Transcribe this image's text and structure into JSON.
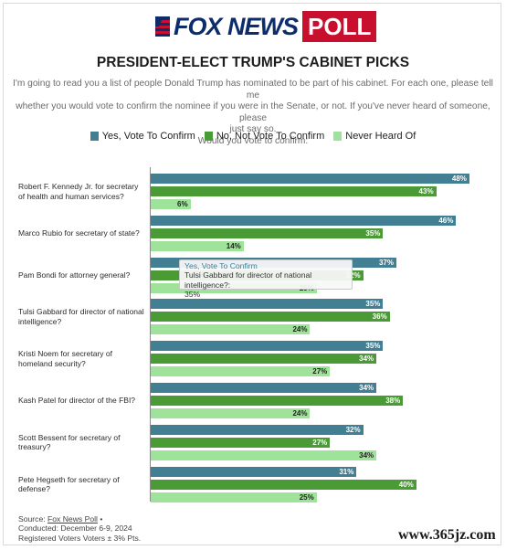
{
  "brand": {
    "logo_text": "FOX NEWS",
    "logo_poll": "POLL"
  },
  "title": "PRESIDENT-ELECT TRUMP'S CABINET PICKS",
  "question": {
    "line1": "I'm going to read you a list of people Donald Trump has nominated to be part of his cabinet. For each one, please tell me",
    "line2": "whether you would vote to confirm the nominee if you were in the Senate, or not. If you've never heard of someone, please",
    "line3": "just say so.",
    "line4": "Would you vote to confirm:"
  },
  "colors": {
    "yes": "#437f93",
    "no": "#4a9b36",
    "never": "#9fe39a"
  },
  "chart_data": {
    "type": "bar",
    "orientation": "horizontal",
    "value_format": "{v}%",
    "categories": [
      "Robert F. Kennedy Jr. for secretary of health and human services?",
      "Marco Rubio for secretary of state?",
      "Pam Bondi for attorney general?",
      "Tulsi Gabbard for director of national intelligence?",
      "Kristi Noem for secretary of homeland security?",
      "Kash Patel for director of the FBI?",
      "Scott Bessent for secretary of treasury?",
      "Pete Hegseth for secretary of defense?"
    ],
    "series": [
      {
        "name": "Yes, Vote To Confirm",
        "values": [
          48,
          46,
          37,
          35,
          35,
          34,
          32,
          31
        ]
      },
      {
        "name": "No, Not Vote To Confirm",
        "values": [
          43,
          35,
          32,
          36,
          34,
          38,
          27,
          40
        ]
      },
      {
        "name": "Never Heard Of",
        "values": [
          6,
          14,
          25,
          24,
          27,
          24,
          34,
          25
        ]
      }
    ],
    "xlim": [
      0,
      52
    ],
    "legend": "top-center"
  },
  "tooltip": {
    "series": "Yes, Vote To Confirm",
    "category": "Tulsi Gabbard for director of national intelligence?:",
    "value": "35%"
  },
  "footer": {
    "source_prefix": "Source: ",
    "source_link": "Fox News Poll",
    "source_suffix": " •",
    "conducted": "Conducted: December 6-9, 2024",
    "voters": "Registered Voters Voters ± 3% Pts."
  },
  "watermark": "www.365jz.com"
}
